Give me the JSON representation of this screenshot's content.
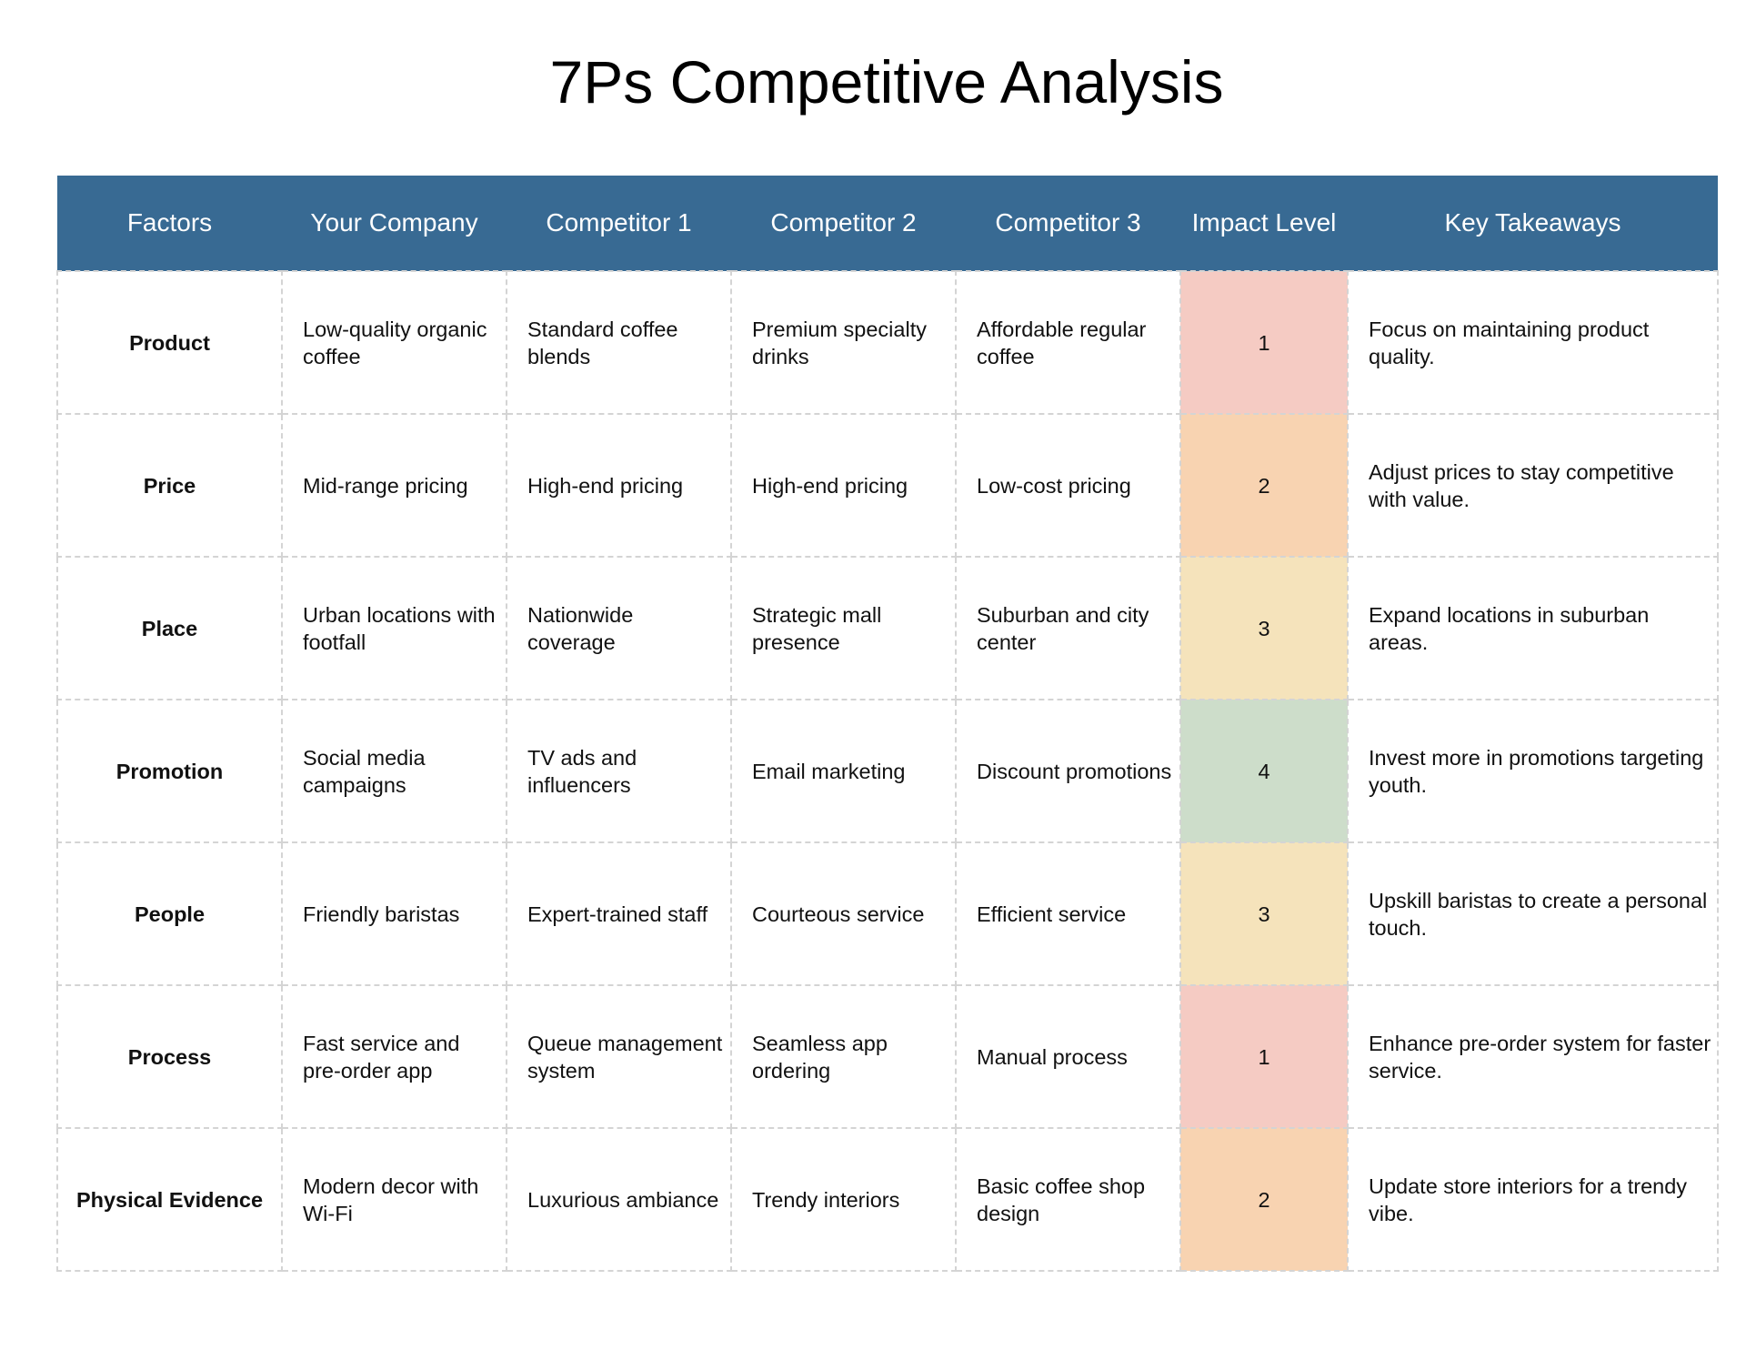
{
  "title": "7Ps Competitive Analysis",
  "colors": {
    "header_bg": "#386a93",
    "impact_1": "#f5cbc3",
    "impact_2": "#f8d3b1",
    "impact_3": "#f5e3bb",
    "impact_4": "#cdddca"
  },
  "table": {
    "headers": [
      "Factors",
      "Your Company",
      "Competitor 1",
      "Competitor 2",
      "Competitor 3",
      "Impact Level",
      "Key Takeaways"
    ],
    "rows": [
      {
        "factor": "Product",
        "your_company": "Low-quality organic coffee",
        "competitor_1": "Standard coffee blends",
        "competitor_2": "Premium specialty drinks",
        "competitor_3": "Affordable regular coffee",
        "impact": "1",
        "takeaway": "Focus on maintaining product quality."
      },
      {
        "factor": "Price",
        "your_company": "Mid-range pricing",
        "competitor_1": "High-end pricing",
        "competitor_2": "High-end pricing",
        "competitor_3": "Low-cost pricing",
        "impact": "2",
        "takeaway": "Adjust prices to stay competitive with value."
      },
      {
        "factor": "Place",
        "your_company": "Urban locations with footfall",
        "competitor_1": "Nationwide coverage",
        "competitor_2": "Strategic mall presence",
        "competitor_3": "Suburban and city center",
        "impact": "3",
        "takeaway": "Expand locations in suburban areas."
      },
      {
        "factor": "Promotion",
        "your_company": "Social media campaigns",
        "competitor_1": "TV ads and influencers",
        "competitor_2": "Email marketing",
        "competitor_3": "Discount promotions",
        "impact": "4",
        "takeaway": "Invest more in promotions targeting youth."
      },
      {
        "factor": "People",
        "your_company": "Friendly baristas",
        "competitor_1": "Expert-trained staff",
        "competitor_2": "Courteous service",
        "competitor_3": "Efficient service",
        "impact": "3",
        "takeaway": "Upskill baristas to create a personal touch."
      },
      {
        "factor": "Process",
        "your_company": "Fast service and pre-order app",
        "competitor_1": "Queue management system",
        "competitor_2": "Seamless app ordering",
        "competitor_3": "Manual process",
        "impact": "1",
        "takeaway": "Enhance pre-order system for faster service."
      },
      {
        "factor": "Physical Evidence",
        "your_company": "Modern decor with Wi-Fi",
        "competitor_1": "Luxurious ambiance",
        "competitor_2": "Trendy interiors",
        "competitor_3": "Basic coffee shop design",
        "impact": "2",
        "takeaway": "Update store interiors for a trendy vibe."
      }
    ]
  }
}
